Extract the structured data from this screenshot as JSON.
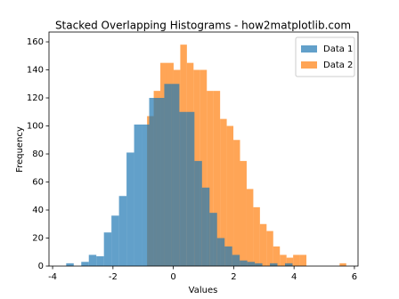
{
  "chart_data": {
    "type": "histogram",
    "title": "Stacked Overlapping Histograms - how2matplotlib.com",
    "x_label": "Values",
    "y_label": "Frequency",
    "xlim": [
      -4.12,
      6.12
    ],
    "xticks": [
      -4,
      -2,
      0,
      2,
      4,
      6
    ],
    "ylim": [
      0,
      167
    ],
    "yticks": [
      0,
      20,
      40,
      60,
      80,
      100,
      120,
      140,
      160
    ],
    "legend": "upper right",
    "opacity": 0.7,
    "series": [
      {
        "name": "Data 1",
        "color": "#1f77b4",
        "bins": [
          -3.55,
          -3.3,
          -3.05,
          -2.8,
          -2.55,
          -2.3,
          -2.05,
          -1.8,
          -1.55,
          -1.3,
          -1.05,
          -0.8,
          -0.55,
          -0.3,
          -0.05,
          0.2,
          0.45,
          0.7,
          0.95,
          1.2,
          1.45,
          1.7,
          1.95,
          2.2,
          2.45,
          2.7,
          2.95,
          3.2,
          3.45,
          3.7,
          3.95
        ],
        "values": [
          2,
          0,
          3,
          8,
          7,
          24,
          36,
          50,
          81,
          101,
          101,
          120,
          120,
          130,
          130,
          110,
          110,
          75,
          56,
          38,
          20,
          14,
          8,
          4,
          3,
          2,
          0,
          2,
          0,
          2
        ]
      },
      {
        "name": "Data 2",
        "color": "#ff7f0e",
        "bins": [
          -0.87,
          -0.65,
          -0.43,
          -0.21,
          0.01,
          0.23,
          0.45,
          0.67,
          0.89,
          1.11,
          1.33,
          1.55,
          1.77,
          1.99,
          2.21,
          2.43,
          2.65,
          2.87,
          3.09,
          3.31,
          3.53,
          3.75,
          3.97,
          4.19,
          4.41,
          4.63,
          4.85,
          5.07,
          5.29,
          5.51,
          5.73
        ],
        "values": [
          107,
          125,
          145,
          145,
          140,
          158,
          145,
          140,
          140,
          125,
          125,
          105,
          100,
          90,
          75,
          55,
          42,
          30,
          25,
          14,
          8,
          6,
          8,
          8,
          0,
          0,
          0,
          0,
          0,
          2
        ]
      }
    ]
  }
}
